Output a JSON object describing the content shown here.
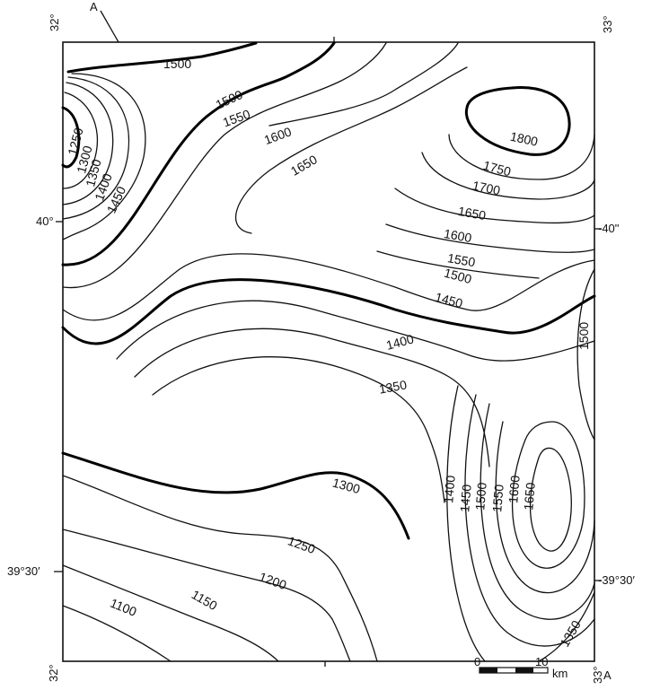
{
  "map": {
    "corners": {
      "top_left_lon": "32°",
      "top_right_lon": "33°",
      "bottom_left_lon": "32°",
      "bottom_right_lon": "33°"
    },
    "latitudes": {
      "left_40": "40°",
      "right_40": "-40\"",
      "left_39_30": "39°30′",
      "right_39_30": "-39°30′"
    },
    "section": {
      "start": "A",
      "end": "A"
    },
    "scale_bar": {
      "zero": "0",
      "ten": "10",
      "unit": "km"
    },
    "contour_labels": [
      "1500",
      "1500",
      "1550",
      "1600",
      "1650",
      "1800",
      "1750",
      "1700",
      "1650",
      "1600",
      "1550",
      "1500",
      "1450",
      "1250",
      "1300",
      "1350",
      "1400",
      "1450",
      "1400",
      "1350",
      "1300",
      "1500",
      "1400",
      "1450",
      "1500",
      "1550",
      "1600",
      "1650",
      "1250",
      "1200",
      "1150",
      "1100",
      "1350"
    ]
  }
}
